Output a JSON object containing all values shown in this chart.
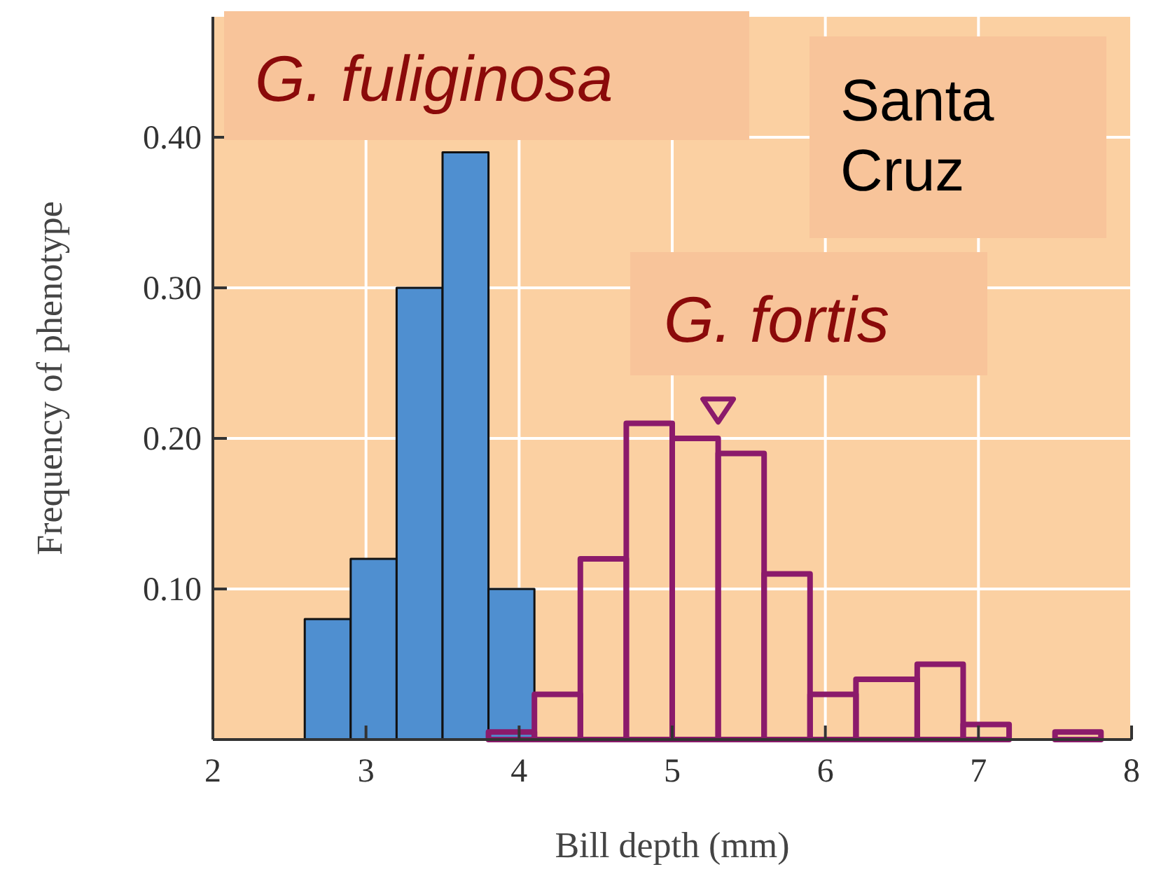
{
  "chart_data": {
    "type": "histogram",
    "xlabel": "Bill depth (mm)",
    "ylabel": "Frequency of phenotype",
    "xlim": [
      2,
      8
    ],
    "xticks": [
      2,
      3,
      4,
      5,
      6,
      7,
      8
    ],
    "ylim": [
      0,
      0.48
    ],
    "yticks": [
      {
        "value": 0.1,
        "label": "0.10"
      },
      {
        "value": 0.2,
        "label": "0.20"
      },
      {
        "value": 0.3,
        "label": "0.30"
      },
      {
        "value": 0.4,
        "label": "0.40"
      }
    ],
    "grid": true,
    "series": [
      {
        "name": "G. fuliginosa",
        "color": "#4f8fd0",
        "bins": [
          2.6,
          2.9,
          3.2,
          3.5,
          3.8,
          4.1
        ],
        "values": [
          0.08,
          0.12,
          0.3,
          0.39,
          0.1
        ]
      },
      {
        "name": "G. fortis",
        "color": "#8b1a6b",
        "bins": [
          3.8,
          4.1,
          4.4,
          4.7,
          5.0,
          5.3,
          5.6,
          5.9,
          6.2,
          6.6,
          6.9,
          7.2,
          7.5,
          7.8
        ],
        "values": [
          0.005,
          0.03,
          0.12,
          0.21,
          0.2,
          0.19,
          0.11,
          0.03,
          0.04,
          0.05,
          0.01,
          0,
          0.005
        ]
      },
      {
        "type": "scatter",
        "color": "#8b1a6b",
        "marker": "triangle",
        "x": [
          5.3
        ],
        "values": [
          0.22
        ]
      }
    ],
    "annotations": [
      "Santa Cruz"
    ]
  }
}
